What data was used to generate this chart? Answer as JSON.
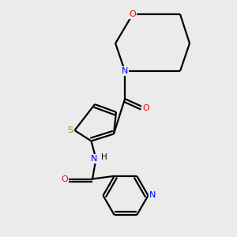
{
  "bg_color": "#ebebeb",
  "bond_color": "#000000",
  "atom_colors": {
    "O": "#ff0000",
    "N": "#0000ff",
    "S": "#999900",
    "H": "#000000"
  },
  "figsize": [
    3.0,
    3.0
  ],
  "dpi": 100
}
